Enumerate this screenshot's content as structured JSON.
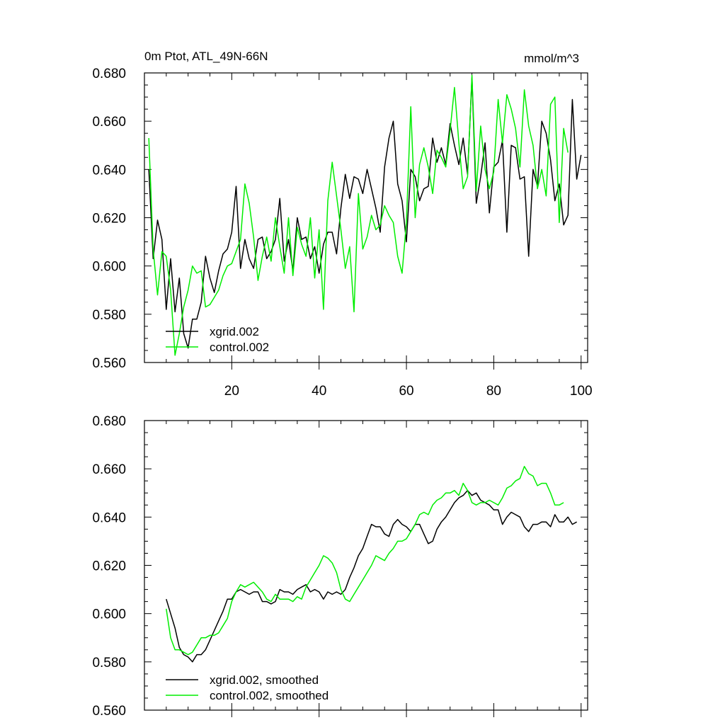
{
  "figure": {
    "title_left": "0m Ptot, ATL_49N-66N",
    "title_right": "mmol/m^3"
  },
  "colors": {
    "series_a": "#000000",
    "series_b": "#00ee00",
    "axis": "#000000"
  },
  "chart_data": [
    {
      "type": "line",
      "title": "0m Ptot, ATL_49N-66N",
      "units": "mmol/m^3",
      "xlim": [
        0,
        101.5
      ],
      "ylim": [
        0.56,
        0.68
      ],
      "x_ticks": [
        20,
        40,
        60,
        80,
        100
      ],
      "x_tick_labels": [
        "20",
        "40",
        "60",
        "80",
        "100"
      ],
      "y_ticks": [
        0.56,
        0.58,
        0.6,
        0.62,
        0.64,
        0.66,
        0.68
      ],
      "y_tick_labels": [
        "0.560",
        "0.580",
        "0.600",
        "0.620",
        "0.640",
        "0.660",
        "0.680"
      ],
      "legend_position": "bottom-left",
      "x_start": 1,
      "series": [
        {
          "name": "xgrid.002",
          "color": "#000000",
          "values": [
            0.64,
            0.603,
            0.619,
            0.611,
            0.582,
            0.603,
            0.581,
            0.595,
            0.572,
            0.566,
            0.578,
            0.578,
            0.585,
            0.604,
            0.595,
            0.589,
            0.598,
            0.605,
            0.607,
            0.614,
            0.633,
            0.599,
            0.611,
            0.603,
            0.599,
            0.611,
            0.612,
            0.603,
            0.606,
            0.611,
            0.628,
            0.602,
            0.611,
            0.598,
            0.62,
            0.611,
            0.612,
            0.603,
            0.608,
            0.597,
            0.609,
            0.614,
            0.614,
            0.605,
            0.624,
            0.638,
            0.628,
            0.637,
            0.636,
            0.63,
            0.64,
            0.632,
            0.624,
            0.614,
            0.641,
            0.653,
            0.66,
            0.634,
            0.627,
            0.61,
            0.64,
            0.637,
            0.627,
            0.632,
            0.633,
            0.653,
            0.643,
            0.649,
            0.642,
            0.659,
            0.65,
            0.642,
            0.653,
            0.638,
            0.678,
            0.626,
            0.637,
            0.651,
            0.622,
            0.641,
            0.643,
            0.652,
            0.614,
            0.65,
            0.649,
            0.636,
            0.637,
            0.604,
            0.64,
            0.633,
            0.66,
            0.655,
            0.644,
            0.627,
            0.634,
            0.617,
            0.621,
            0.669,
            0.636,
            0.646
          ]
        },
        {
          "name": "control.002",
          "color": "#00ee00",
          "values": [
            0.653,
            0.607,
            0.588,
            0.606,
            0.604,
            0.59,
            0.563,
            0.572,
            0.583,
            0.59,
            0.6,
            0.597,
            0.598,
            0.583,
            0.584,
            0.587,
            0.59,
            0.596,
            0.6,
            0.601,
            0.606,
            0.611,
            0.634,
            0.626,
            0.612,
            0.594,
            0.604,
            0.612,
            0.602,
            0.62,
            0.608,
            0.597,
            0.62,
            0.596,
            0.616,
            0.609,
            0.604,
            0.62,
            0.595,
            0.615,
            0.582,
            0.627,
            0.643,
            0.629,
            0.615,
            0.599,
            0.608,
            0.581,
            0.63,
            0.607,
            0.612,
            0.621,
            0.615,
            0.617,
            0.625,
            0.621,
            0.618,
            0.604,
            0.597,
            0.618,
            0.666,
            0.62,
            0.642,
            0.649,
            0.641,
            0.63,
            0.648,
            0.645,
            0.641,
            0.656,
            0.674,
            0.651,
            0.632,
            0.637,
            0.679,
            0.631,
            0.658,
            0.64,
            0.632,
            0.639,
            0.669,
            0.651,
            0.671,
            0.665,
            0.657,
            0.641,
            0.673,
            0.658,
            0.65,
            0.632,
            0.64,
            0.629,
            0.667,
            0.67,
            0.618,
            0.657,
            0.647
          ]
        }
      ]
    },
    {
      "type": "line",
      "xlim": [
        0,
        101.5
      ],
      "ylim": [
        0.56,
        0.68
      ],
      "x_ticks": [
        20,
        40,
        60,
        80,
        100
      ],
      "y_ticks": [
        0.56,
        0.58,
        0.6,
        0.62,
        0.64,
        0.66,
        0.68
      ],
      "y_tick_labels": [
        "0.560",
        "0.580",
        "0.600",
        "0.620",
        "0.640",
        "0.660",
        "0.680"
      ],
      "legend_position": "bottom-left",
      "x_start": 5,
      "series": [
        {
          "name": "xgrid.002, smoothed",
          "color": "#000000",
          "values": [
            0.606,
            0.6,
            0.594,
            0.586,
            0.583,
            0.582,
            0.58,
            0.583,
            0.583,
            0.585,
            0.589,
            0.593,
            0.597,
            0.601,
            0.606,
            0.606,
            0.609,
            0.61,
            0.609,
            0.608,
            0.609,
            0.609,
            0.605,
            0.605,
            0.604,
            0.605,
            0.61,
            0.609,
            0.609,
            0.608,
            0.61,
            0.611,
            0.612,
            0.609,
            0.61,
            0.609,
            0.606,
            0.609,
            0.608,
            0.609,
            0.608,
            0.61,
            0.615,
            0.619,
            0.624,
            0.627,
            0.632,
            0.637,
            0.636,
            0.636,
            0.633,
            0.632,
            0.637,
            0.639,
            0.637,
            0.636,
            0.634,
            0.637,
            0.637,
            0.633,
            0.629,
            0.63,
            0.635,
            0.638,
            0.64,
            0.643,
            0.646,
            0.648,
            0.649,
            0.651,
            0.649,
            0.65,
            0.647,
            0.646,
            0.645,
            0.643,
            0.643,
            0.637,
            0.64,
            0.642,
            0.641,
            0.64,
            0.636,
            0.634,
            0.637,
            0.637,
            0.638,
            0.638,
            0.636,
            0.641,
            0.638,
            0.638,
            0.64,
            0.637,
            0.638
          ]
        },
        {
          "name": "control.002, smoothed",
          "color": "#00ee00",
          "values": [
            0.602,
            0.59,
            0.585,
            0.585,
            0.584,
            0.583,
            0.584,
            0.587,
            0.59,
            0.59,
            0.591,
            0.591,
            0.592,
            0.595,
            0.598,
            0.605,
            0.609,
            0.612,
            0.611,
            0.612,
            0.613,
            0.611,
            0.609,
            0.606,
            0.605,
            0.608,
            0.606,
            0.606,
            0.606,
            0.605,
            0.607,
            0.606,
            0.611,
            0.614,
            0.617,
            0.62,
            0.624,
            0.623,
            0.621,
            0.617,
            0.61,
            0.606,
            0.605,
            0.608,
            0.611,
            0.614,
            0.617,
            0.62,
            0.624,
            0.623,
            0.622,
            0.625,
            0.627,
            0.63,
            0.63,
            0.631,
            0.634,
            0.637,
            0.641,
            0.642,
            0.641,
            0.645,
            0.647,
            0.648,
            0.65,
            0.65,
            0.651,
            0.649,
            0.654,
            0.651,
            0.646,
            0.645,
            0.646,
            0.646,
            0.647,
            0.646,
            0.645,
            0.648,
            0.652,
            0.653,
            0.655,
            0.656,
            0.661,
            0.658,
            0.657,
            0.653,
            0.654,
            0.654,
            0.65,
            0.645,
            0.645,
            0.646
          ]
        }
      ]
    }
  ]
}
